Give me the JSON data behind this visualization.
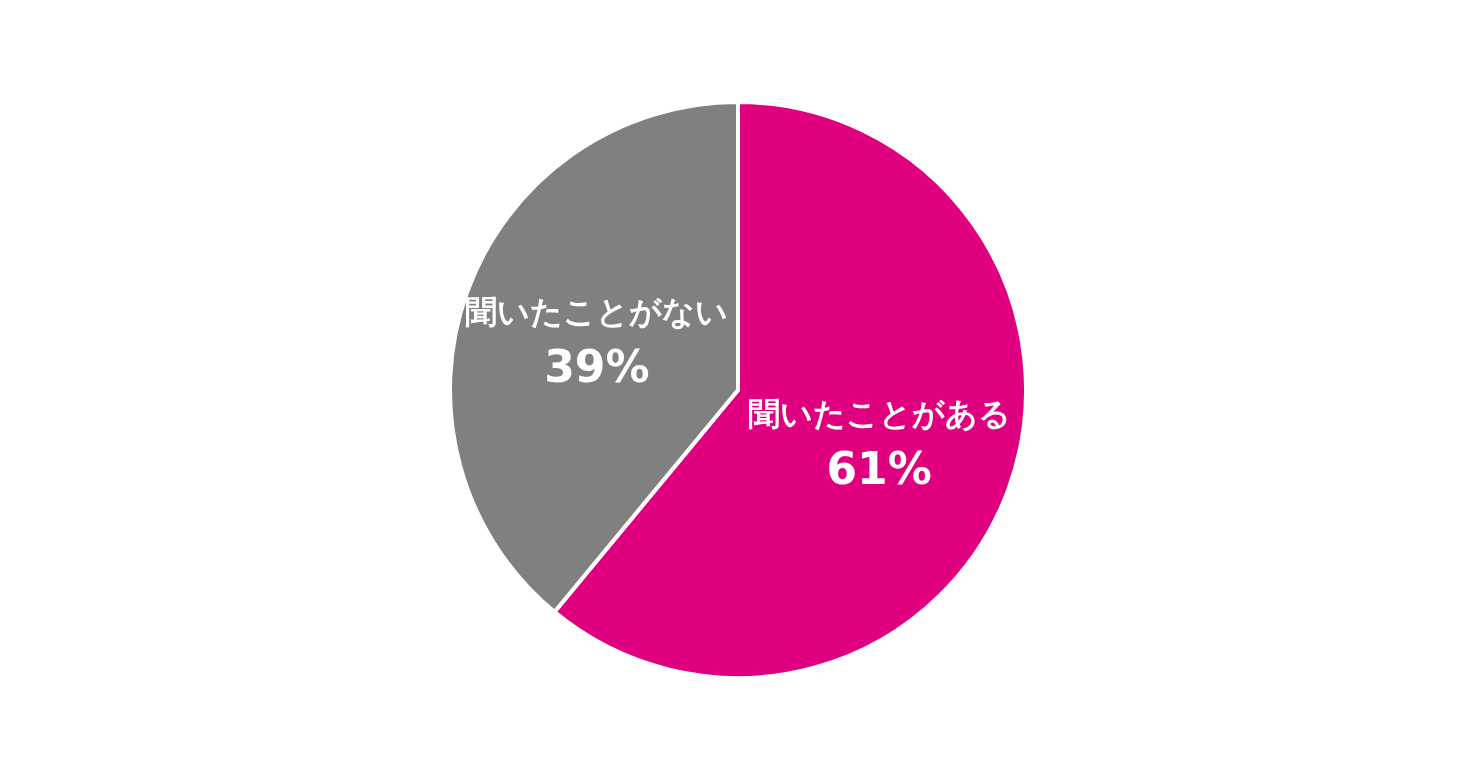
{
  "chart_data": {
    "type": "pie",
    "categories": [
      "聞いたことがある",
      "聞いたことがない"
    ],
    "values": [
      61,
      39
    ],
    "colors": [
      "#e0007f",
      "#808080"
    ],
    "value_labels": [
      "61%",
      "39%"
    ]
  }
}
